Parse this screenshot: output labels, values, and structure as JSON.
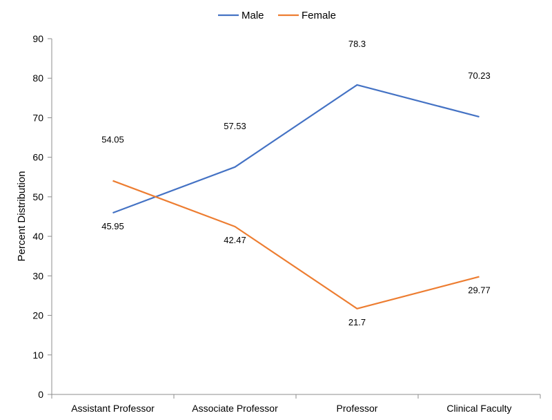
{
  "chart_data": {
    "type": "line",
    "categories": [
      "Assistant Professor",
      "Associate Professor",
      "Professor",
      "Clinical Faculty"
    ],
    "series": [
      {
        "name": "Male",
        "values": [
          45.95,
          57.53,
          78.3,
          70.23
        ],
        "labels": [
          "45.95",
          "57.53",
          "78.3",
          "70.23"
        ],
        "color": "#4472C4"
      },
      {
        "name": "Female",
        "values": [
          54.05,
          42.47,
          21.7,
          29.77
        ],
        "labels": [
          "54.05",
          "42.47",
          "21.7",
          "29.77"
        ],
        "color": "#ED7D31"
      }
    ],
    "ylabel": "Percent Distribution",
    "xlabel": "",
    "ylim": [
      0,
      90
    ],
    "yticks": [
      "0",
      "10",
      "20",
      "30",
      "40",
      "50",
      "60",
      "70",
      "80",
      "90"
    ],
    "grid": false,
    "legend_position": "top-center"
  }
}
